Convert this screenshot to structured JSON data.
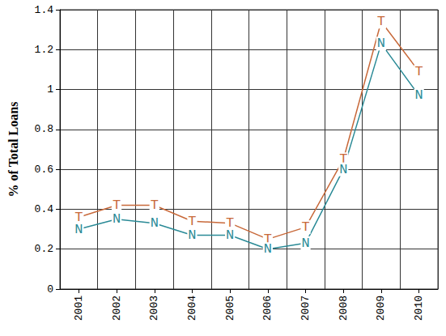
{
  "chart_data": {
    "type": "line",
    "y_label": "% of Total Loans",
    "categories": [
      "2001",
      "2002",
      "2003",
      "2004",
      "2005",
      "2006",
      "2007",
      "2008",
      "2009",
      "2010"
    ],
    "series": [
      {
        "name": "T",
        "color": "#c8693a",
        "marker": "letter",
        "values": [
          0.36,
          0.42,
          0.42,
          0.34,
          0.33,
          0.25,
          0.31,
          0.65,
          1.34,
          1.09
        ]
      },
      {
        "name": "N",
        "color": "#2a8a96",
        "marker": "letter",
        "values": [
          0.3,
          0.35,
          0.33,
          0.27,
          0.27,
          0.2,
          0.23,
          0.6,
          1.23,
          0.97
        ]
      }
    ],
    "ylim": [
      0,
      1.4
    ],
    "yticks": [
      0,
      0.2,
      0.4,
      0.6,
      0.8,
      1,
      1.2,
      1.4
    ],
    "grid": true
  }
}
